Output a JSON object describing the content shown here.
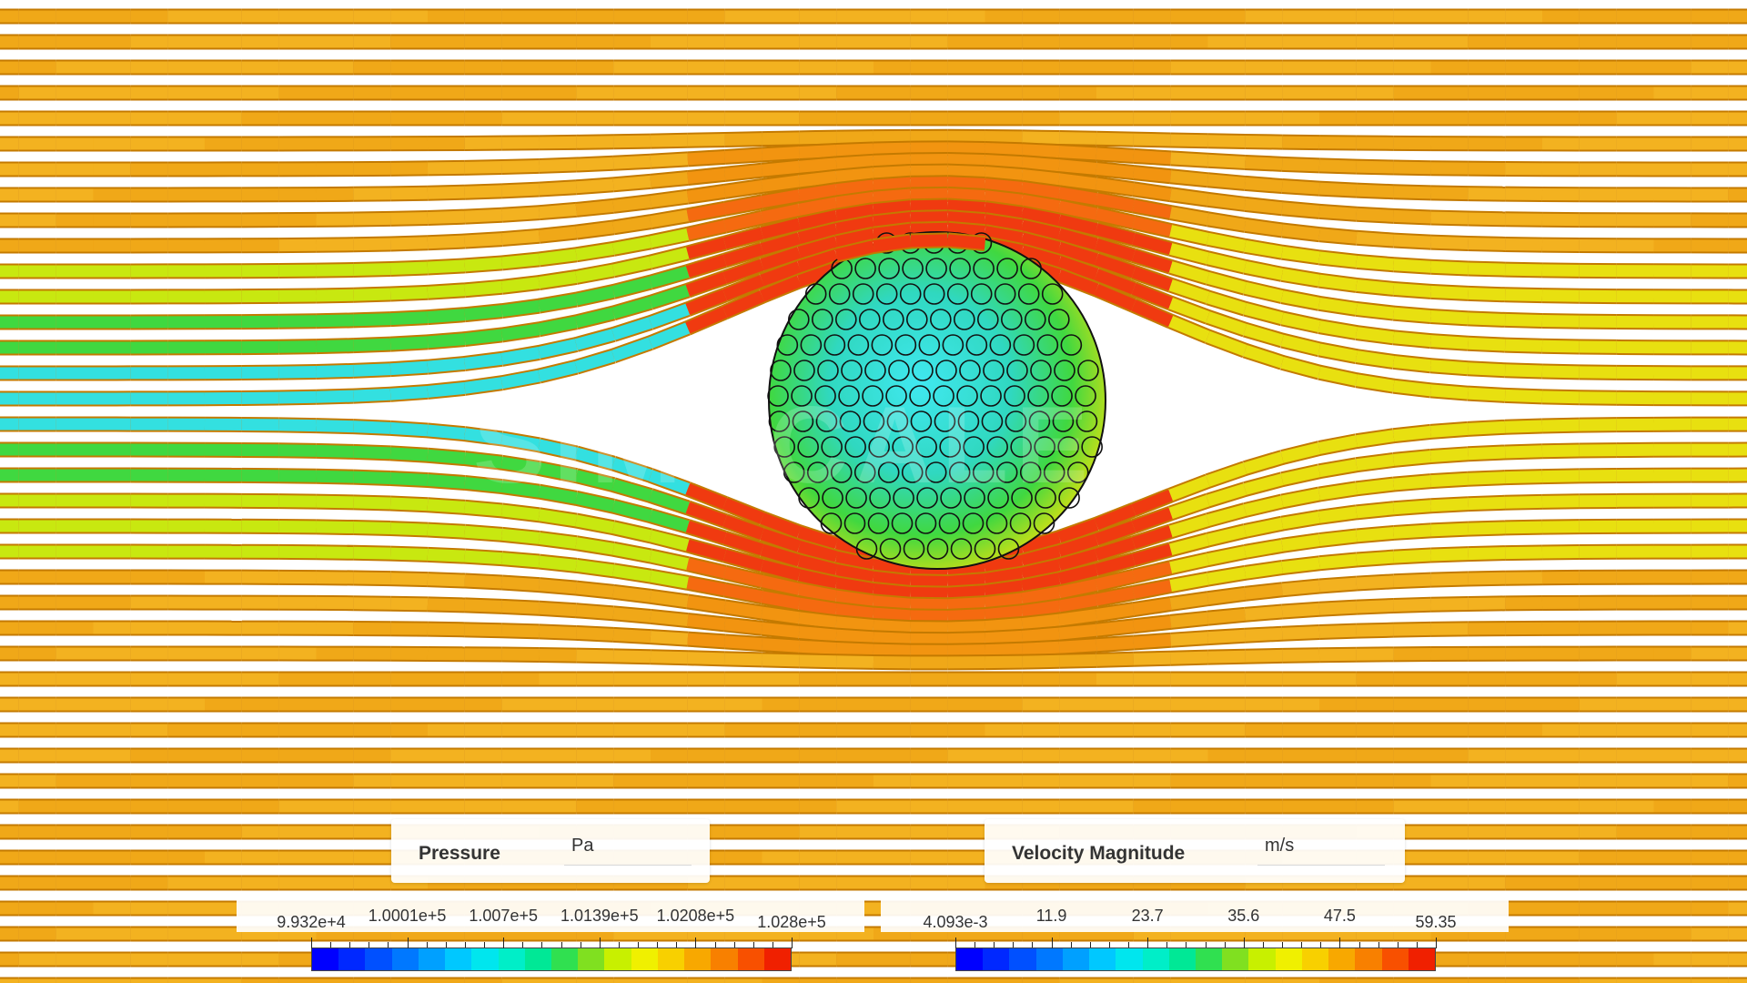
{
  "watermark": "SIMSCALE",
  "legends": [
    {
      "id": "pressure",
      "title": "Pressure",
      "unit": "Pa",
      "ticks": [
        "9.932e+4",
        "1.0001e+5",
        "1.007e+5",
        "1.0139e+5",
        "1.0208e+5",
        "1.028e+5"
      ]
    },
    {
      "id": "velocity",
      "title": "Velocity Magnitude",
      "unit": "m/s",
      "ticks": [
        "4.093e-3",
        "11.9",
        "23.7",
        "35.6",
        "47.5",
        "59.35"
      ]
    }
  ],
  "colormap": [
    "#0000ff",
    "#0028ff",
    "#0050ff",
    "#0078ff",
    "#00a0ff",
    "#00c8ff",
    "#00e6ee",
    "#00eec8",
    "#00e896",
    "#30e050",
    "#80e020",
    "#c8f000",
    "#f0f000",
    "#f8d000",
    "#f8a800",
    "#f88000",
    "#f85000",
    "#f02000"
  ],
  "colors": {
    "streamline_base": "#f3b220",
    "streamline_edge": "#d98e00",
    "sphere_edge": "#111111"
  }
}
